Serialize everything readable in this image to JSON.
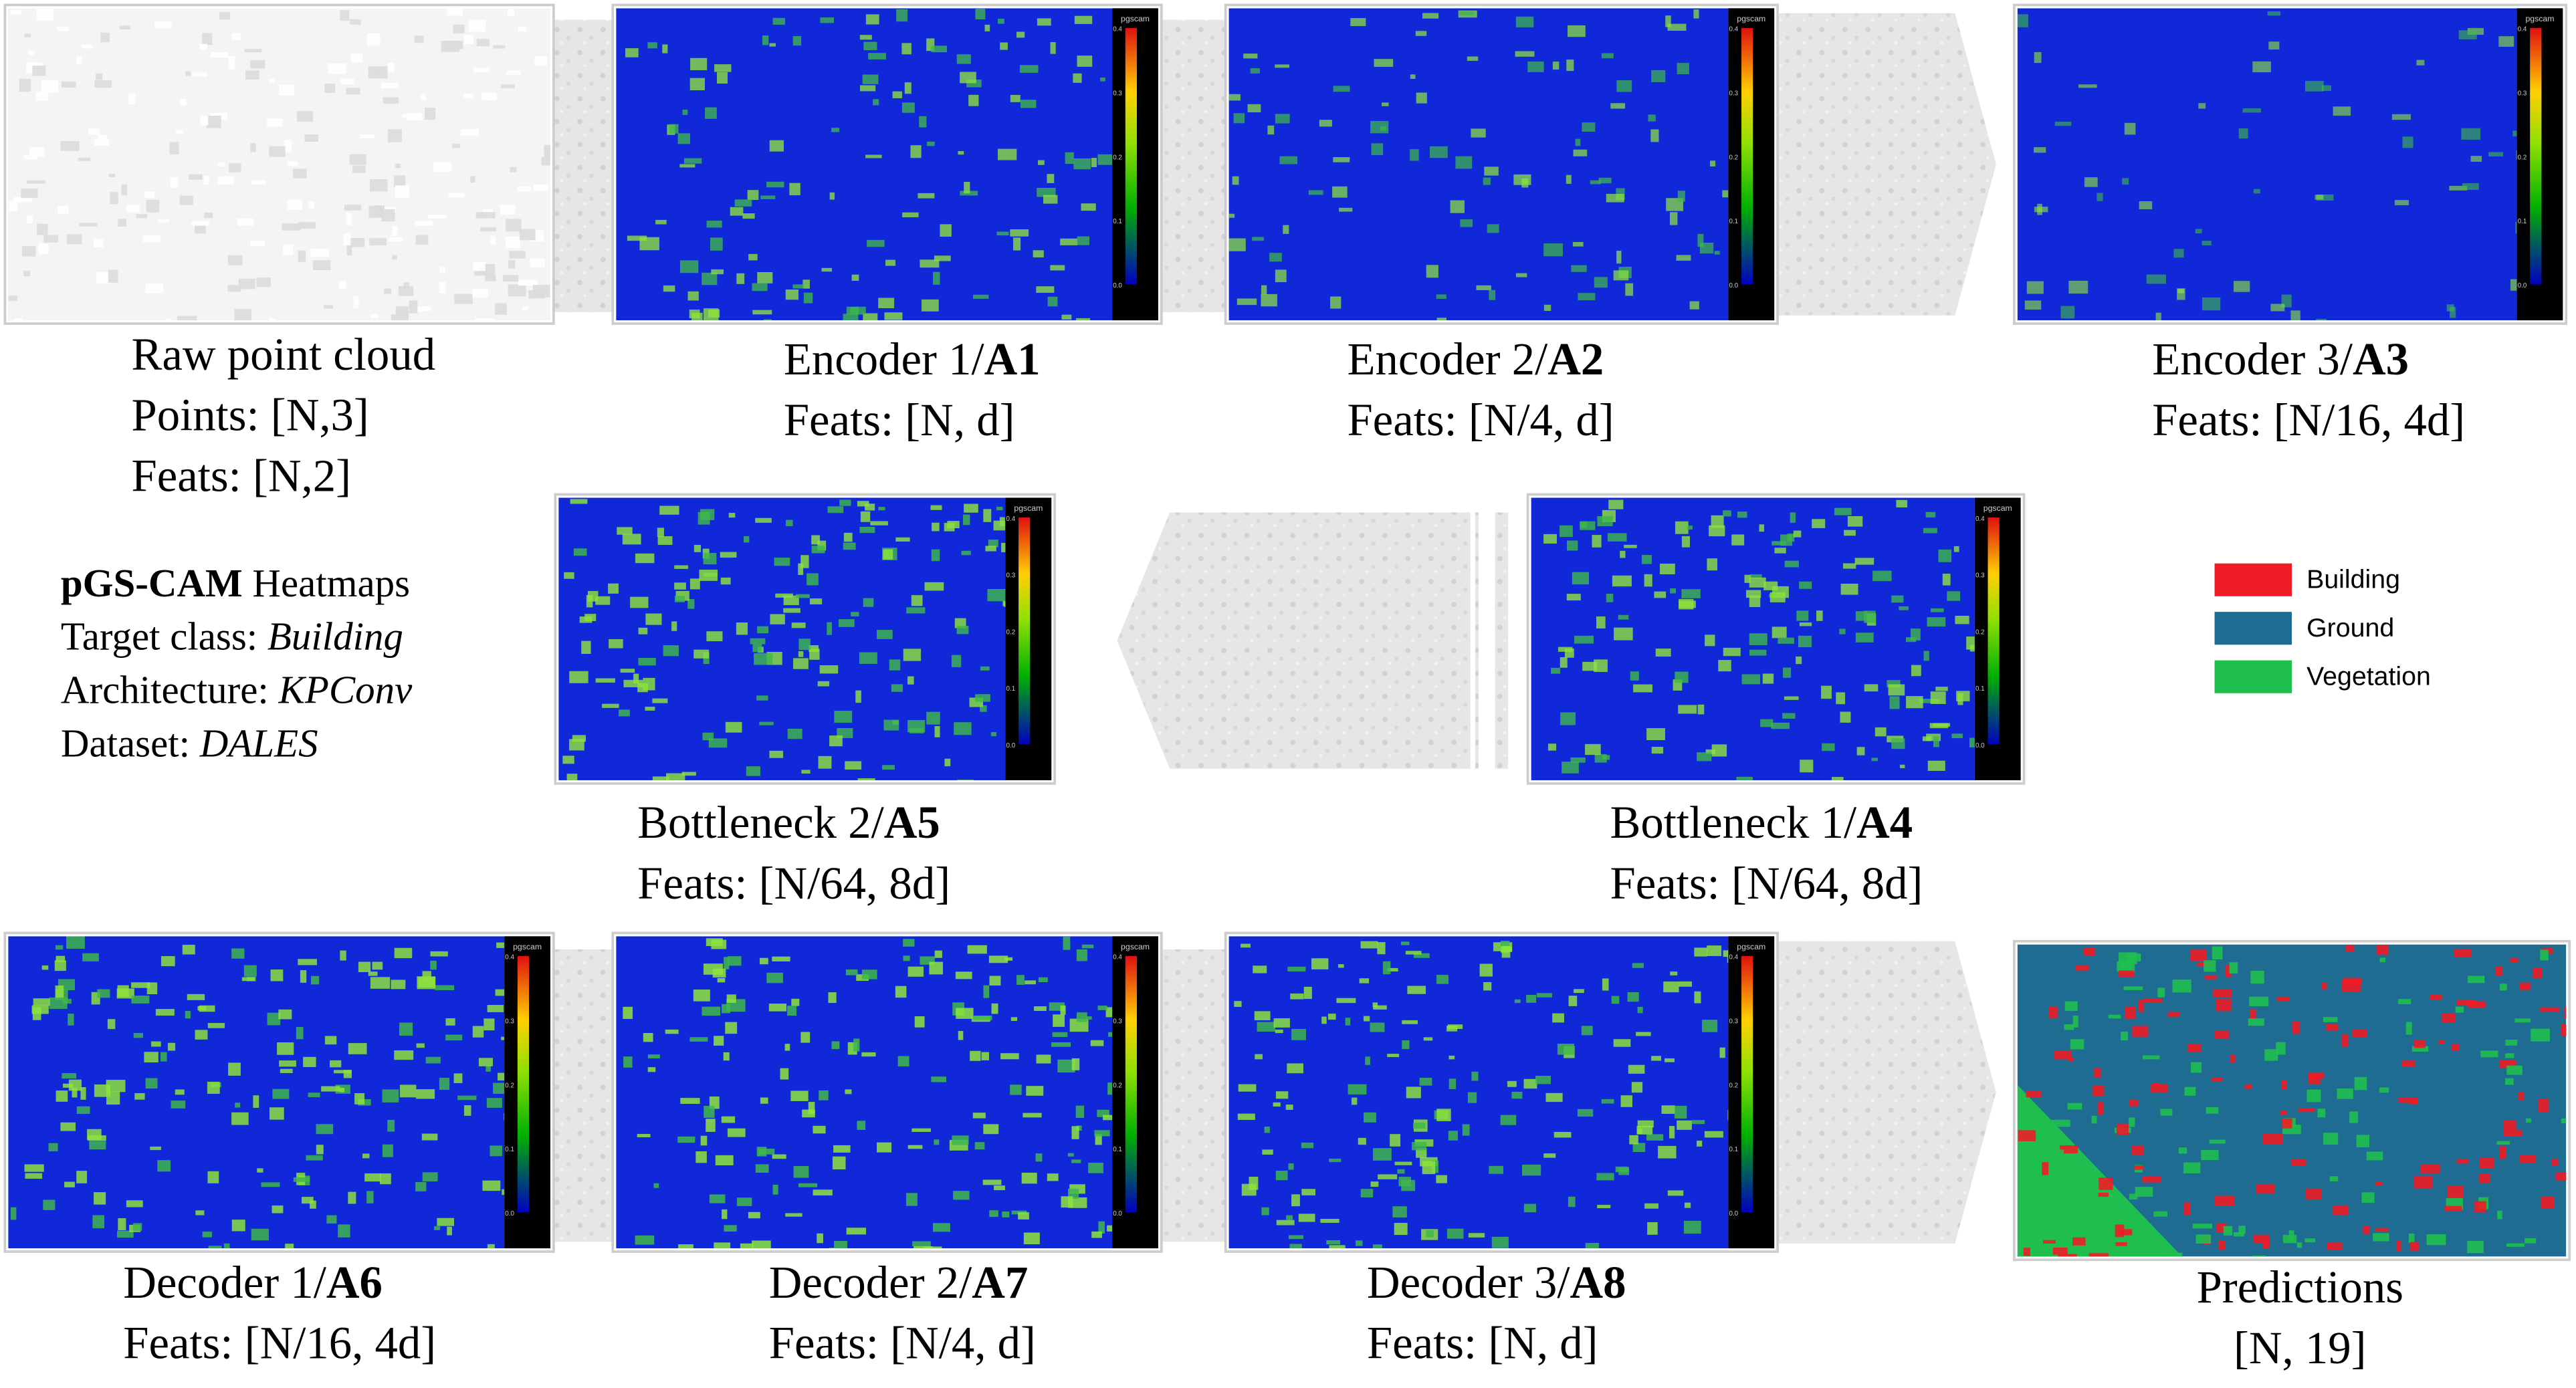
{
  "panels": [
    {
      "title": {
        "text": "Raw point cloud"
      },
      "lines": [
        "Points: [N,3]",
        "Feats: [N,2]"
      ]
    },
    {
      "title": {
        "prefix": "Encoder 1/",
        "bold": "A1"
      },
      "lines": [
        "Feats: [N, d]"
      ]
    },
    {
      "title": {
        "prefix": "Encoder 2/",
        "bold": "A2"
      },
      "lines": [
        "Feats: [N/4, d]"
      ]
    },
    {
      "title": {
        "prefix": "Encoder 3/",
        "bold": "A3"
      },
      "lines": [
        "Feats: [N/16, 4d]"
      ]
    },
    {
      "title": {
        "prefix": "Bottleneck 1/",
        "bold": "A4"
      },
      "lines": [
        "Feats: [N/64, 8d]"
      ]
    },
    {
      "title": {
        "prefix": "Bottleneck 2/",
        "bold": "A5"
      },
      "lines": [
        "Feats: [N/64, 8d]"
      ]
    },
    {
      "title": {
        "prefix": "Decoder 1/",
        "bold": "A6"
      },
      "lines": [
        "Feats: [N/16, 4d]"
      ]
    },
    {
      "title": {
        "prefix": "Decoder 2/",
        "bold": "A7"
      },
      "lines": [
        "Feats: [N/4, d]"
      ]
    },
    {
      "title": {
        "prefix": "Decoder 3/",
        "bold": "A8"
      },
      "lines": [
        "Feats: [N, d]"
      ]
    },
    {
      "title": {
        "text": "Predictions"
      },
      "lines": [
        "[N, 19]"
      ]
    }
  ],
  "colorbar": {
    "title": "pgscam",
    "ticks": [
      "0.4",
      "0.3",
      "0.2",
      "0.1",
      "0.0"
    ]
  },
  "info": [
    {
      "bold": "pGS-CAM",
      "text": " Heatmaps"
    },
    {
      "text": "Target class: ",
      "italic": "Building"
    },
    {
      "text": "Architecture: ",
      "italic": "KPConv"
    },
    {
      "text": "Dataset: ",
      "italic": "DALES"
    }
  ],
  "legend": [
    {
      "label": "Building",
      "color": "#ee1c25"
    },
    {
      "label": "Ground",
      "color": "#1f6c93"
    },
    {
      "label": "Vegetation",
      "color": "#1fbf4f"
    }
  ]
}
